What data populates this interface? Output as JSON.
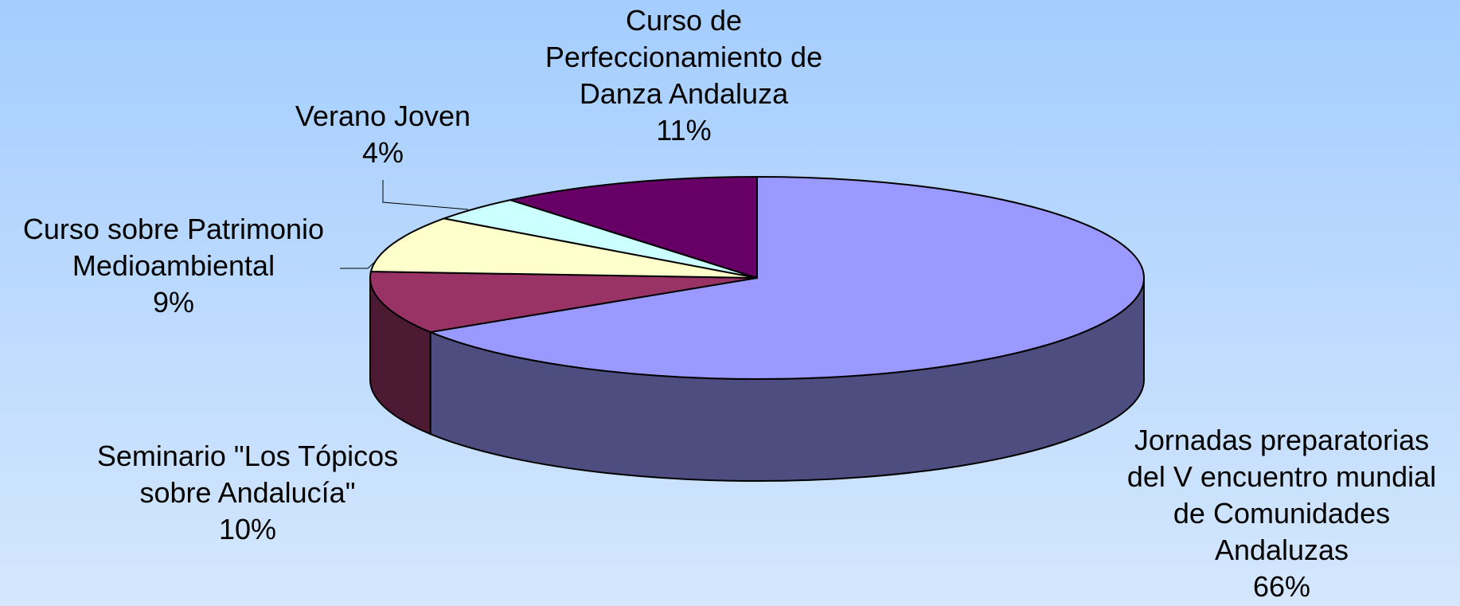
{
  "chart_data": {
    "type": "pie3d",
    "categories": [
      "Jornadas preparatorias del V encuentro mundial de Comunidades Andaluzas",
      "Seminario \"Los Tópicos sobre Andalucía\"",
      "Curso sobre Patrimonio Medioambiental",
      "Verano Joven",
      "Curso de Perfeccionamiento de Danza Andaluza"
    ],
    "values": [
      66,
      10,
      9,
      4,
      11
    ],
    "value_labels": [
      "66%",
      "10%",
      "9%",
      "4%",
      "11%"
    ],
    "colors": [
      "#9999ff",
      "#993366",
      "#ffffcc",
      "#ccffff",
      "#660066"
    ]
  }
}
